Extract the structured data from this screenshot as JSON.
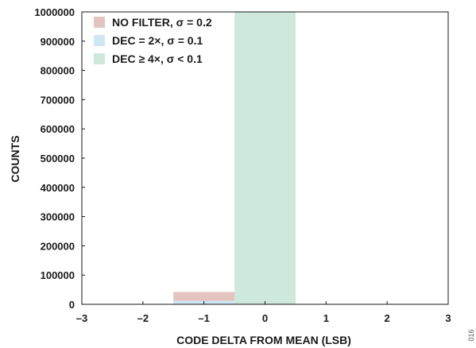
{
  "chart_data": {
    "type": "bar",
    "xlabel": "CODE DELTA FROM MEAN (LSB)",
    "ylabel": "COUNTS",
    "xlim": [
      -3,
      3
    ],
    "ylim": [
      0,
      1000000
    ],
    "x_ticks": [
      "–3",
      "–2",
      "–1",
      "0",
      "1",
      "2",
      "3"
    ],
    "y_ticks": [
      "0",
      "100000",
      "200000",
      "300000",
      "400000",
      "500000",
      "600000",
      "700000",
      "800000",
      "900000",
      "1000000"
    ],
    "bin_width": 1,
    "grid": false,
    "legend_position": "top-left",
    "series": [
      {
        "name": "NO FILTER, σ = 0.2",
        "color": "#e3c4c0",
        "points": [
          {
            "x": -1,
            "y": 42000
          },
          {
            "x": 0,
            "y": 1000000
          }
        ]
      },
      {
        "name": "DEC = 2×, σ = 0.1",
        "color": "#cfe6f5",
        "points": [
          {
            "x": -1,
            "y": 12000
          },
          {
            "x": 0,
            "y": 1000000
          }
        ]
      },
      {
        "name": "DEC ≥ 4×, σ < 0.1",
        "color": "#cfe8dc",
        "points": [
          {
            "x": 0,
            "y": 1000000
          }
        ]
      }
    ]
  },
  "figure_id": "016"
}
